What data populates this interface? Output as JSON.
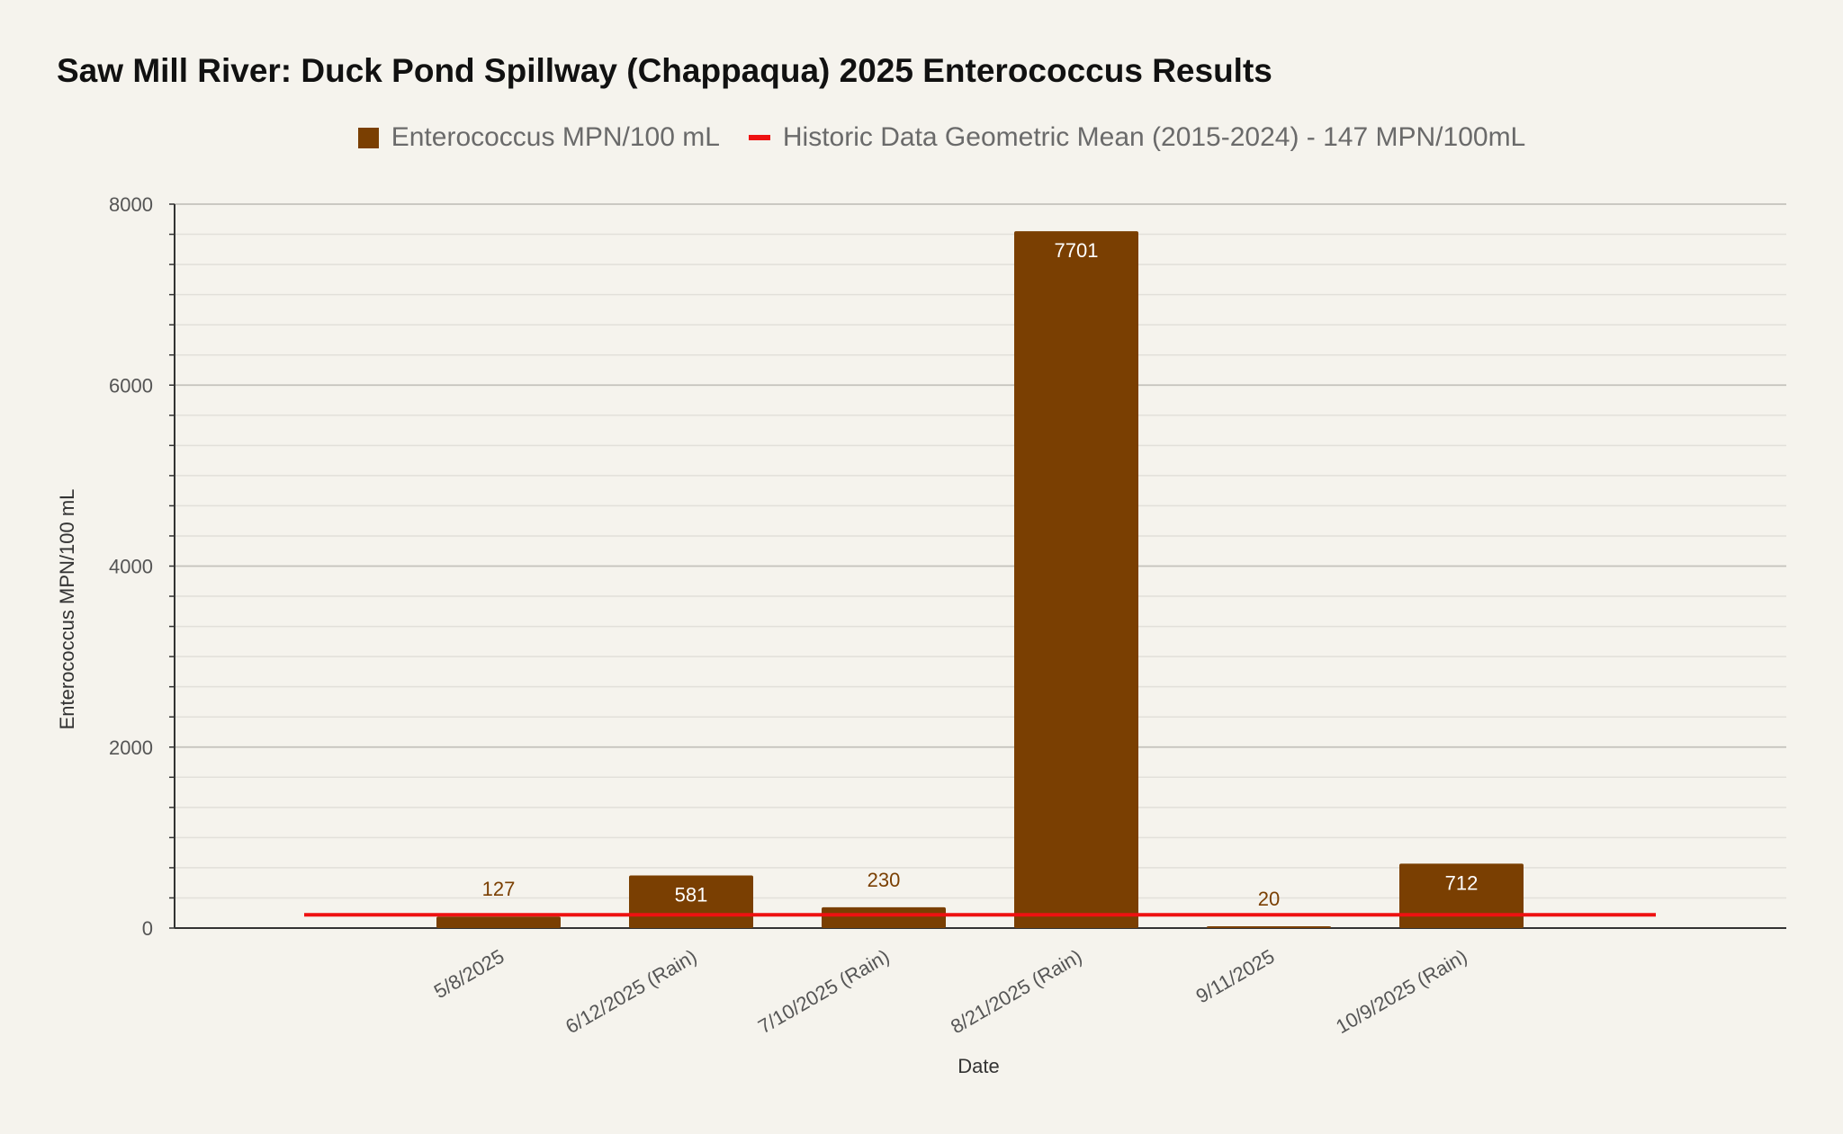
{
  "chart_data": {
    "type": "bar",
    "title": "Saw Mill River: Duck Pond Spillway (Chappaqua) 2025 Enterococcus Results",
    "xlabel": "Date",
    "ylabel": "Enterococcus MPN/100 mL",
    "ylim": [
      0,
      8000
    ],
    "yticks": [
      0,
      2000,
      4000,
      6000,
      8000
    ],
    "grid": true,
    "legend_position": "top",
    "categories": [
      "5/8/2025",
      "6/12/2025 (Rain)",
      "7/10/2025 (Rain)",
      "8/21/2025 (Rain)",
      "9/11/2025",
      "10/9/2025 (Rain)"
    ],
    "series": [
      {
        "name": "Enterococcus MPN/100 mL",
        "type": "bar",
        "color": "#7a3f02",
        "values": [
          127,
          581,
          230,
          7701,
          20,
          712
        ],
        "labels": [
          "127",
          "581",
          "230",
          "7701",
          "20",
          "712"
        ]
      },
      {
        "name": "Historic Data Geometric Mean (2015-2024) - 147 MPN/100mL",
        "type": "line",
        "color": "#ee1111",
        "value": 147
      }
    ]
  }
}
